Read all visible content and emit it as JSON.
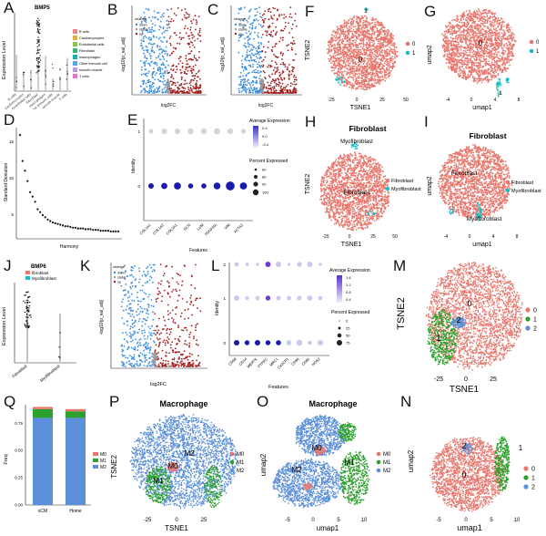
{
  "panel_letters": {
    "A": "A",
    "B": "B",
    "C": "C",
    "D": "D",
    "E": "E",
    "F": "F",
    "G": "G",
    "H": "H",
    "I": "I",
    "J": "J",
    "K": "K",
    "L": "L",
    "M": "M",
    "N": "N",
    "O": "O",
    "P": "P",
    "Q": "Q"
  },
  "colors": {
    "red": "#e8766c",
    "cyan": "#19bfc4",
    "green": "#2ca02c",
    "blue": "#5b8fd9",
    "volcano_blue": "#3e8fdd",
    "volcano_red": "#a32020",
    "grey": "#9a9a9a",
    "dot_dark": "#1a1aa0",
    "dot_light": "#c9c9ee"
  },
  "A": {
    "title": "BMP5",
    "ylabel": "Expression Level",
    "legend": [
      "B cells",
      "Cardiomyocytes",
      "Endothelial cells",
      "Fibroblast",
      "macrophages",
      "Other immune cells",
      "smooth muscle",
      "T cells"
    ],
    "legend_colors": [
      "#e88a8a",
      "#d9b04a",
      "#8bc34a",
      "#3cb371",
      "#20b2aa",
      "#5da5da",
      "#b39ddb",
      "#e377c2"
    ]
  },
  "B": {
    "ylabel": "-log10(p_val_adj)",
    "xlabel": "log2FC",
    "legend_title": "change",
    "legend": [
      "down",
      "stable",
      "up"
    ]
  },
  "C": {
    "ylabel": "-log10(p_val_adj)",
    "xlabel": "log2FC",
    "legend_title": "change",
    "legend": [
      "down",
      "stable",
      "up"
    ]
  },
  "D": {
    "ylabel": "Standard Deviation",
    "xlabel": "Harmony",
    "yticks": [
      "15",
      "10",
      "5"
    ]
  },
  "E": {
    "ylabel": "Identity",
    "xlabel": "Features",
    "ytick_labels": [
      "1",
      "0"
    ],
    "features": [
      "COL1A1",
      "COL1A2",
      "COL3A1",
      "DCN",
      "LUM",
      "PDGFRA",
      "VIM",
      "ACTA2"
    ],
    "colorbar_title": "Average Expression",
    "colorbar_ticks": [
      "0.4",
      "0.0",
      "-0.4"
    ],
    "size_title": "Percent Expressed",
    "size_ticks": [
      "60",
      "80",
      "90",
      "100"
    ]
  },
  "F": {
    "xlabel": "TSNE1",
    "ylabel": "TSNE2",
    "cluster_labels": [
      "0",
      "1"
    ],
    "legend": [
      "0",
      "1"
    ],
    "xticks": [
      "-25",
      "0",
      "25",
      "50"
    ]
  },
  "G": {
    "xlabel": "umap1",
    "ylabel": "umap2",
    "cluster_labels": [
      "0",
      "1"
    ],
    "legend": [
      "0",
      "1"
    ],
    "xticks": [
      "-4",
      "0",
      "4",
      "8"
    ]
  },
  "H": {
    "title": "Fibroblast",
    "xlabel": "TSNE1",
    "ylabel": "TSNE2",
    "cluster_labels": [
      "Fibroblast",
      "Myofibroblast"
    ],
    "legend": [
      "Fibroblast",
      "Myofibroblast"
    ],
    "xticks": [
      "-25",
      "0",
      "25",
      "50"
    ]
  },
  "I": {
    "title": "Fibroblast",
    "xlabel": "umap1",
    "ylabel": "umap2",
    "cluster_labels": [
      "Fibroblast",
      "Myofibroblast"
    ],
    "legend": [
      "Fibroblast",
      "Myofibroblast"
    ],
    "xticks": [
      "-4",
      "0",
      "4",
      "8"
    ]
  },
  "J": {
    "title": "BMP6",
    "ylabel": "Expression Level",
    "legend": [
      "fibroblast",
      "Myofibroblast"
    ],
    "xcats": [
      "Fibroblast",
      "Myofibroblast"
    ]
  },
  "K": {
    "ylabel": "-log10(p_val_adj)",
    "xlabel": "log2FC",
    "legend_title": "change",
    "legend": [
      "down",
      "stable",
      "up"
    ]
  },
  "L": {
    "ylabel": "Identity",
    "xlabel": "Features",
    "ytick_labels": [
      "2",
      "1",
      "0"
    ],
    "features": [
      "CD68",
      "CD14",
      "MERTK",
      "PTPRC",
      "MRC1",
      "CX3CR1",
      "CD86",
      "CD80",
      "NOS2"
    ],
    "colorbar_title": "Average Expression",
    "colorbar_ticks": [
      "1.6",
      "1.2",
      "0.8",
      "0.4"
    ],
    "size_title": "Percent Expressed",
    "size_ticks": [
      "0",
      "25",
      "50",
      "75"
    ]
  },
  "M": {
    "xlabel": "TSNE1",
    "ylabel": "TSNE2",
    "cluster_labels": [
      "0",
      "1",
      "2"
    ],
    "legend": [
      "0",
      "1",
      "2"
    ],
    "xticks": [
      "-25",
      "0",
      "25"
    ]
  },
  "N": {
    "xlabel": "umap1",
    "ylabel": "umap2",
    "cluster_labels": [
      "0",
      "1",
      "2"
    ],
    "legend": [
      "0",
      "1",
      "2"
    ],
    "xticks": [
      "-5",
      "0",
      "5",
      "10"
    ]
  },
  "O": {
    "title": "Macrophage",
    "xlabel": "umap1",
    "ylabel": "umap2",
    "cluster_labels": [
      "M0",
      "M1",
      "M2"
    ],
    "legend": [
      "M0",
      "M1",
      "M2"
    ],
    "xticks": [
      "-5",
      "0",
      "5",
      "10"
    ]
  },
  "P": {
    "title": "Macrophage",
    "xlabel": "TSNE1",
    "ylabel": "TSNE2",
    "cluster_labels": [
      "M0",
      "M1",
      "M2"
    ],
    "legend": [
      "M0",
      "M1",
      "M2"
    ],
    "xticks": [
      "-25",
      "0",
      "25"
    ]
  },
  "chart_data": [
    {
      "panel": "Q",
      "type": "bar",
      "stacked": true,
      "categories": [
        "sCM",
        "Home"
      ],
      "ylabel": "Freq",
      "series": [
        {
          "name": "M0",
          "values": [
            0.02,
            0.02
          ]
        },
        {
          "name": "M1",
          "values": [
            0.08,
            0.06
          ]
        },
        {
          "name": "M2",
          "values": [
            0.8,
            0.8
          ]
        }
      ],
      "legend": [
        "M0",
        "M1",
        "M2"
      ],
      "yticks": [
        "0.75",
        "0.50",
        "0.25",
        "0.00"
      ],
      "ylim": [
        0,
        0.92
      ]
    },
    {
      "panel": "D",
      "type": "scatter",
      "xlabel": "Harmony",
      "ylabel": "Standard Deviation",
      "y": [
        15,
        11.5,
        10.2,
        8.8,
        7.3,
        6.7,
        6.0,
        5.0,
        4.6,
        4.2,
        3.9,
        3.6,
        3.4,
        3.2,
        3.1,
        3.0,
        2.9,
        2.8,
        2.7,
        2.7,
        2.6,
        2.5,
        2.5,
        2.4,
        2.4,
        2.4,
        2.3,
        2.3,
        2.3,
        2.2,
        2.2,
        2.2,
        2.1,
        2.1,
        2.1,
        2.1,
        2.0,
        2.0,
        2.0,
        2.0
      ],
      "ylim": [
        1,
        16
      ]
    }
  ]
}
